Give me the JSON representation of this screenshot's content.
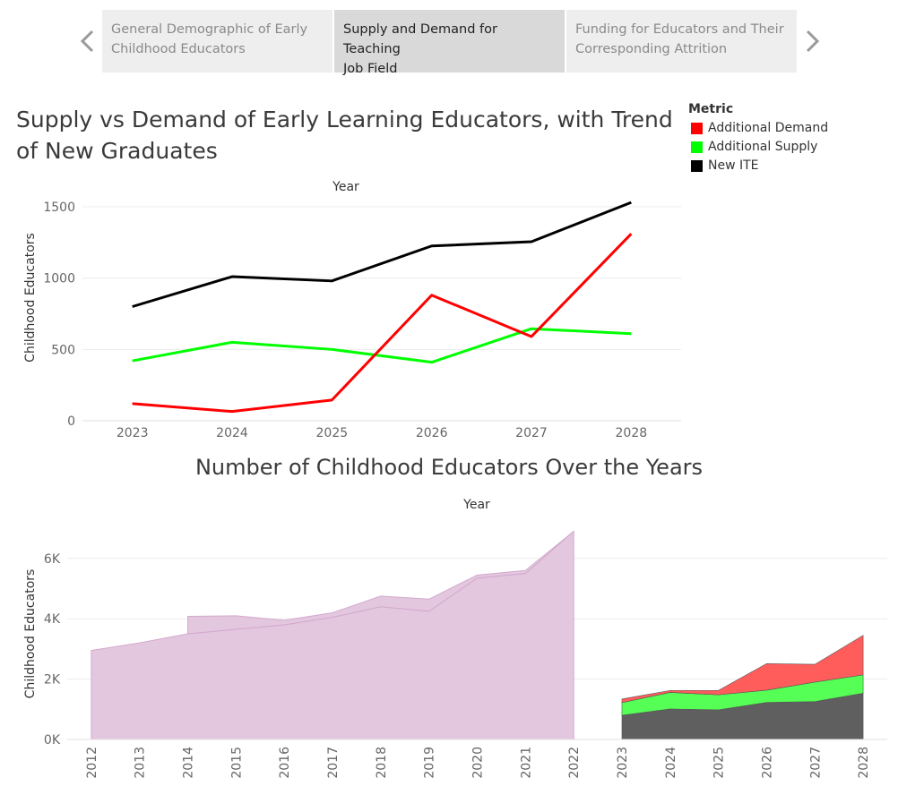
{
  "nav": {
    "tabs": [
      {
        "label_line1": "General Demographic of Early",
        "label_line2": "Childhood Educators",
        "active": false
      },
      {
        "label_line1": "Supply and Demand for Teaching",
        "label_line2": "Job Field",
        "active": true
      },
      {
        "label_line1": "Funding for Educators and Their",
        "label_line2": "Corresponding Attrition",
        "active": false
      }
    ],
    "prev_icon": "chevron-left-icon",
    "next_icon": "chevron-right-icon"
  },
  "legend": {
    "title": "Metric",
    "items": [
      {
        "label": "Additional Demand",
        "color": "#ff0000"
      },
      {
        "label": "Additional Supply",
        "color": "#00ff00"
      },
      {
        "label": "New ITE",
        "color": "#000000"
      }
    ]
  },
  "chart_data": [
    {
      "type": "line",
      "title": "Supply vs Demand of Early Learning Educators, with Trend of New Graduates",
      "xlabel": "Year",
      "ylabel": "Childhood Educators",
      "x": [
        "2023",
        "2024",
        "2025",
        "2026",
        "2027",
        "2028"
      ],
      "ylim": [
        0,
        1600
      ],
      "yticks": [
        0,
        500,
        1000,
        1500
      ],
      "grid": true,
      "legend_position": "top-right",
      "series": [
        {
          "name": "New ITE",
          "color": "#000000",
          "values": [
            800,
            1010,
            980,
            1225,
            1255,
            1530
          ]
        },
        {
          "name": "Additional Supply",
          "color": "#00ff00",
          "values": [
            420,
            550,
            500,
            410,
            645,
            610
          ]
        },
        {
          "name": "Additional Demand",
          "color": "#ff0000",
          "values": [
            120,
            65,
            145,
            880,
            590,
            1310
          ]
        }
      ]
    },
    {
      "type": "area",
      "title": "Number of Childhood Educators Over the Years",
      "xlabel": "Year",
      "ylabel": "Childhood Educators",
      "ylim": [
        0,
        7300
      ],
      "yticks": [
        0,
        2000,
        4000,
        6000
      ],
      "ytick_labels": [
        "0K",
        "2K",
        "4K",
        "6K"
      ],
      "grid": true,
      "historical": {
        "color": "#e3c7df",
        "x": [
          "2012",
          "2013",
          "2014",
          "2015",
          "2016",
          "2017",
          "2018",
          "2019",
          "2020",
          "2021",
          "2022"
        ],
        "total": [
          2950,
          3200,
          3500,
          3650,
          3800,
          4050,
          4400,
          4250,
          5350,
          5500,
          6900
        ],
        "upper_band": [
          null,
          null,
          4080,
          4100,
          3950,
          4200,
          4750,
          4650,
          5450,
          5600,
          6900
        ]
      },
      "projection": {
        "x": [
          "2023",
          "2024",
          "2025",
          "2026",
          "2027",
          "2028"
        ],
        "stack": [
          {
            "name": "New ITE",
            "color": "#5f5f5f",
            "values": [
              800,
              1010,
              980,
              1225,
              1255,
              1530
            ]
          },
          {
            "name": "Additional Supply",
            "color": "#55ff55",
            "values": [
              420,
              550,
              500,
              410,
              645,
              610
            ]
          },
          {
            "name": "Additional Demand",
            "color": "#ff5c5c",
            "values": [
              120,
              65,
              145,
              880,
              590,
              1310
            ]
          }
        ]
      }
    }
  ]
}
